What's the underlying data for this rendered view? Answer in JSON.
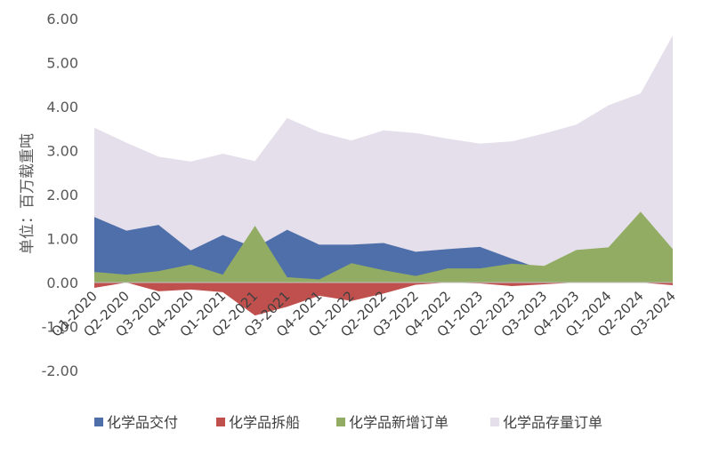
{
  "chart_data": {
    "type": "area",
    "xlabel": "",
    "ylabel": "单位：百万载重吨",
    "ylim": [
      -2.0,
      6.0
    ],
    "yticks": [
      -2.0,
      -1.0,
      0.0,
      1.0,
      2.0,
      3.0,
      4.0,
      5.0,
      6.0
    ],
    "ytick_labels": [
      "-2.00",
      "-1.00",
      "0.00",
      "1.00",
      "2.00",
      "3.00",
      "4.00",
      "5.00",
      "6.00"
    ],
    "categories": [
      "Q1-2020",
      "Q2-2020",
      "Q3-2020",
      "Q4-2020",
      "Q1-2021",
      "Q2-2021",
      "Q3-2021",
      "Q4-2021",
      "Q1-2022",
      "Q2-2022",
      "Q3-2022",
      "Q4-2022",
      "Q1-2023",
      "Q2-2023",
      "Q3-2023",
      "Q4-2023",
      "Q1-2024",
      "Q2-2024",
      "Q3-2024"
    ],
    "grid": false,
    "legend_position": "bottom",
    "series": [
      {
        "name": "化学品存量订单",
        "color": "#e4dfeb",
        "values": [
          3.52,
          3.18,
          2.86,
          2.75,
          2.93,
          2.76,
          3.74,
          3.42,
          3.23,
          3.46,
          3.4,
          3.27,
          3.16,
          3.21,
          3.39,
          3.59,
          4.03,
          4.3,
          5.62
        ]
      },
      {
        "name": "化学品交付",
        "color": "#4f6faa",
        "values": [
          1.49,
          1.18,
          1.31,
          0.73,
          1.08,
          0.79,
          1.2,
          0.86,
          0.86,
          0.9,
          0.7,
          0.76,
          0.81,
          0.54,
          0.28,
          0.0,
          0.0,
          0.0,
          0.0
        ]
      },
      {
        "name": "化学品新增订单",
        "color": "#93ac63",
        "values": [
          0.24,
          0.18,
          0.26,
          0.41,
          0.18,
          1.29,
          0.12,
          0.07,
          0.44,
          0.28,
          0.15,
          0.32,
          0.32,
          0.43,
          0.38,
          0.74,
          0.8,
          1.61,
          0.76
        ]
      },
      {
        "name": "化学品拆船",
        "color": "#c0504d",
        "values": [
          -0.12,
          0.0,
          -0.2,
          -0.16,
          -0.22,
          -0.75,
          -0.55,
          -0.3,
          -0.42,
          -0.25,
          -0.05,
          0.0,
          -0.02,
          -0.08,
          -0.04,
          0.0,
          0.0,
          0.0,
          -0.06
        ]
      }
    ],
    "legend": [
      "化学品交付",
      "化学品拆船",
      "化学品新增订单",
      "化学品存量订单"
    ]
  }
}
